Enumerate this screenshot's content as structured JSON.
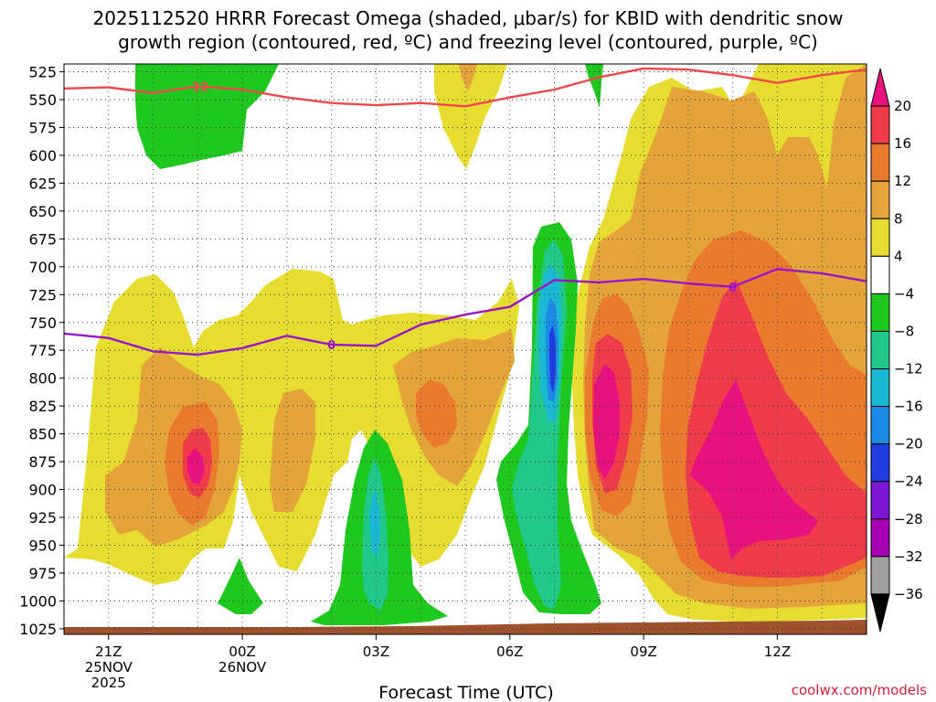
{
  "chart_data": {
    "type": "heatmap",
    "title_line1": "2025112520 HRRR Forecast Omega (shaded, μbar/s) for KBID with dendritic snow",
    "title_line2": "growth region (contoured, red, ºC) and freezing level (contoured, purple, ºC)",
    "xlabel": "Forecast Time (UTC)",
    "credit": "coolwx.com/models",
    "y_ticks": [
      "525",
      "550",
      "575",
      "600",
      "625",
      "650",
      "675",
      "700",
      "725",
      "750",
      "775",
      "800",
      "825",
      "850",
      "875",
      "900",
      "925",
      "950",
      "975",
      "1000",
      "1025"
    ],
    "x_ticks": [
      {
        "label": "21Z",
        "sub1": "25NOV",
        "sub2": "2025",
        "hour": 0
      },
      {
        "label": "00Z",
        "sub1": "26NOV",
        "sub2": "",
        "hour": 3
      },
      {
        "label": "03Z",
        "sub1": "",
        "sub2": "",
        "hour": 6
      },
      {
        "label": "06Z",
        "sub1": "",
        "sub2": "",
        "hour": 9
      },
      {
        "label": "09Z",
        "sub1": "",
        "sub2": "",
        "hour": 12
      },
      {
        "label": "12Z",
        "sub1": "",
        "sub2": "",
        "hour": 15
      }
    ],
    "x_range_hours": [
      -1,
      17
    ],
    "y_range_hpa": [
      518,
      1030
    ],
    "colorbar": {
      "levels": [
        "20",
        "16",
        "12",
        "8",
        "4",
        "−4",
        "−8",
        "−12",
        "−16",
        "−20",
        "−24",
        "−28",
        "−32",
        "−36"
      ],
      "colors": [
        "#e8127f",
        "#f03c4a",
        "#ea7a2e",
        "#e4a43a",
        "#e6dd30",
        "#ffffff",
        "#1ec81e",
        "#22c88a",
        "#1ab8d2",
        "#1a8ce8",
        "#1e3ce0",
        "#7a16d2",
        "#a800b4",
        "#a0a0a0",
        "#000000"
      ]
    },
    "series": [
      {
        "name": "dendritic growth region -12 ºC",
        "color": "#f04848",
        "label": "-12",
        "points": [
          [
            -1,
            540
          ],
          [
            0,
            539
          ],
          [
            1,
            544
          ],
          [
            2,
            538
          ],
          [
            3,
            541
          ],
          [
            4,
            548
          ],
          [
            5,
            553
          ],
          [
            6,
            555
          ],
          [
            7,
            553
          ],
          [
            8,
            556
          ],
          [
            9,
            548
          ],
          [
            10,
            541
          ],
          [
            11,
            530
          ],
          [
            12,
            522
          ],
          [
            13,
            523
          ],
          [
            14,
            528
          ],
          [
            15,
            535
          ],
          [
            16,
            528
          ],
          [
            17,
            523
          ]
        ]
      },
      {
        "name": "freezing level 0 ºC",
        "color": "#9a14c8",
        "label": "0",
        "points": [
          [
            -1,
            760
          ],
          [
            0,
            764
          ],
          [
            1,
            776
          ],
          [
            2,
            779
          ],
          [
            3,
            773
          ],
          [
            4,
            762
          ],
          [
            5,
            770
          ],
          [
            6,
            771
          ],
          [
            7,
            752
          ],
          [
            8,
            743
          ],
          [
            9,
            736
          ],
          [
            10,
            712
          ],
          [
            11,
            714
          ],
          [
            12,
            711
          ],
          [
            13,
            715
          ],
          [
            14,
            718
          ],
          [
            15,
            702
          ],
          [
            16,
            706
          ],
          [
            17,
            713
          ]
        ]
      }
    ]
  }
}
